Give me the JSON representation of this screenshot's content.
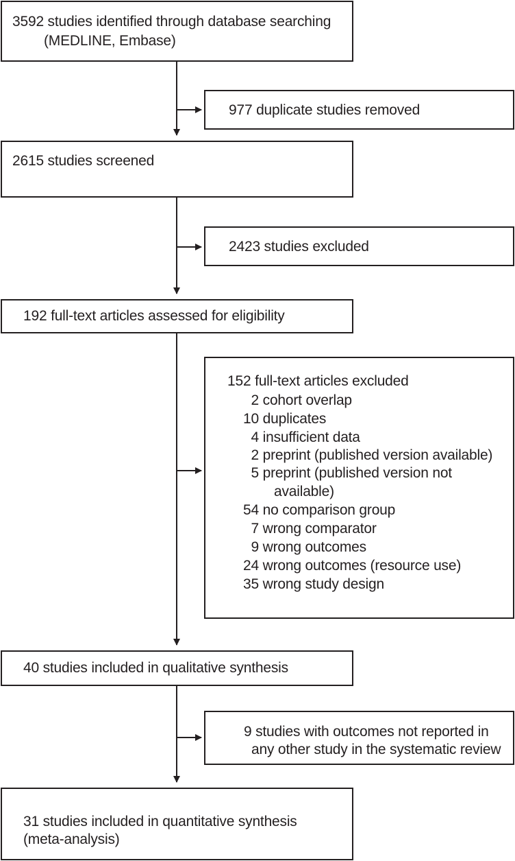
{
  "flow": {
    "identified": {
      "line1": "3592 studies identified through database searching",
      "line2": "(MEDLINE, Embase)"
    },
    "duplicates_removed": "977 duplicate studies removed",
    "screened": "2615 studies screened",
    "excluded": "2423 studies excluded",
    "assessed": "192 full-text articles assessed for eligibility",
    "fulltext_excluded": {
      "header": "152 full-text articles excluded",
      "reasons": [
        {
          "count": "2",
          "label": "cohort overlap"
        },
        {
          "count": "10",
          "label": "duplicates"
        },
        {
          "count": "4",
          "label": "insufficient data"
        },
        {
          "count": "2",
          "label": "preprint (published version available)"
        },
        {
          "count": "5",
          "label": "preprint (published version not",
          "label_cont": "available)"
        },
        {
          "count": "54",
          "label": "no comparison group"
        },
        {
          "count": "7",
          "label": "wrong comparator"
        },
        {
          "count": "9",
          "label": "wrong outcomes"
        },
        {
          "count": "24",
          "label": "wrong outcomes (resource use)"
        },
        {
          "count": "35",
          "label": "wrong study design"
        }
      ]
    },
    "qualitative": "40 studies included in qualitative synthesis",
    "not_reported": {
      "line1": "9 studies with outcomes not reported in",
      "line2": "any other study in the systematic review"
    },
    "quantitative": {
      "line1": "31 studies included in quantitative synthesis",
      "line2": "(meta-analysis)"
    }
  }
}
